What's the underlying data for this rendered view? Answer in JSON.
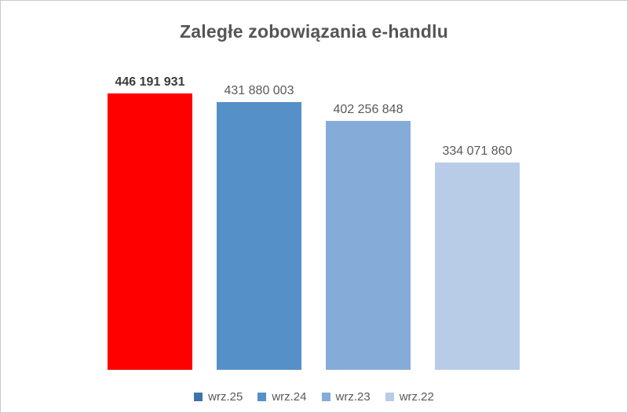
{
  "chart_data": {
    "type": "bar",
    "title": "Zaległe zobowiązania e-handlu",
    "categories": [
      "wrz.25",
      "wrz.24",
      "wrz.23",
      "wrz.22"
    ],
    "values": [
      446191931,
      431880003,
      402256848,
      334071860
    ],
    "value_labels": [
      "446 191 931",
      "431 880 003",
      "402 256 848",
      "334 071 860"
    ],
    "bar_colors": [
      "#fe0000",
      "#5591c8",
      "#85abd9",
      "#b9cce7"
    ],
    "legend_colors": [
      "#3e74a8",
      "#5591c8",
      "#85abd9",
      "#b9cce7"
    ],
    "emphasized_index": 0,
    "xlabel": "",
    "ylabel": "",
    "ylim": [
      0,
      446191931
    ],
    "grid": false,
    "axes_visible": false,
    "legend_position": "bottom"
  }
}
